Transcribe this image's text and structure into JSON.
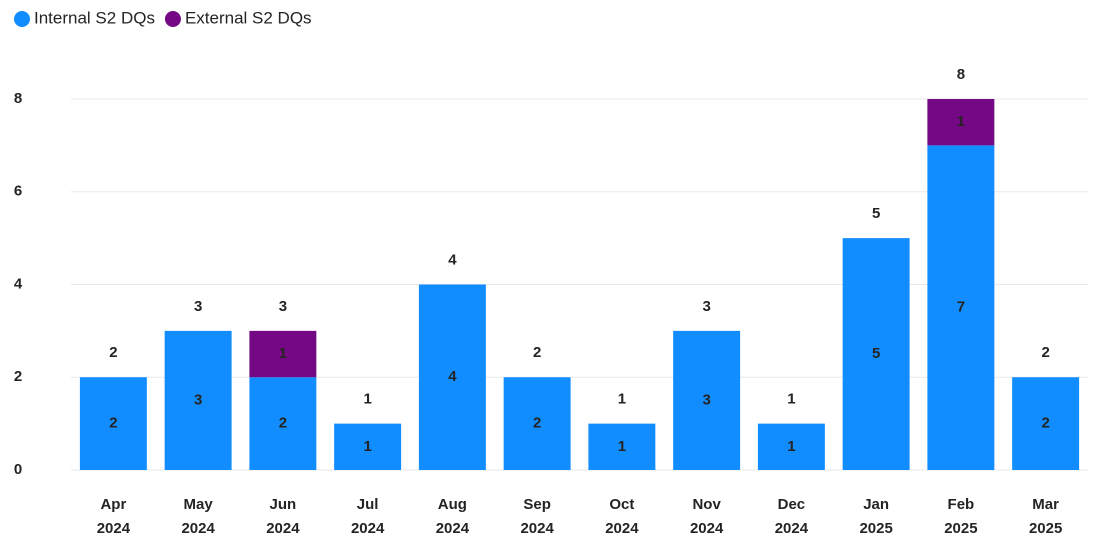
{
  "chart_data": {
    "type": "stacked_bar",
    "categories": [
      "Apr 2024",
      "May 2024",
      "Jun 2024",
      "Jul 2024",
      "Aug 2024",
      "Sep 2024",
      "Oct 2024",
      "Nov 2024",
      "Dec 2024",
      "Jan 2025",
      "Feb 2025",
      "Mar 2025"
    ],
    "series": [
      {
        "name": "Internal S2 DQs",
        "color": "#118dff",
        "values": [
          2,
          3,
          2,
          1,
          4,
          2,
          1,
          3,
          1,
          5,
          7,
          2
        ]
      },
      {
        "name": "External S2 DQs",
        "color": "#750985",
        "values": [
          null,
          null,
          1,
          null,
          null,
          null,
          null,
          null,
          null,
          null,
          1,
          null
        ]
      }
    ],
    "totals": [
      2,
      3,
      3,
      1,
      4,
      2,
      1,
      3,
      1,
      5,
      8,
      2
    ],
    "ylim": [
      0,
      8
    ],
    "yticks": [
      0,
      2,
      4,
      6,
      8
    ],
    "grid": true,
    "legend": "top-left"
  }
}
